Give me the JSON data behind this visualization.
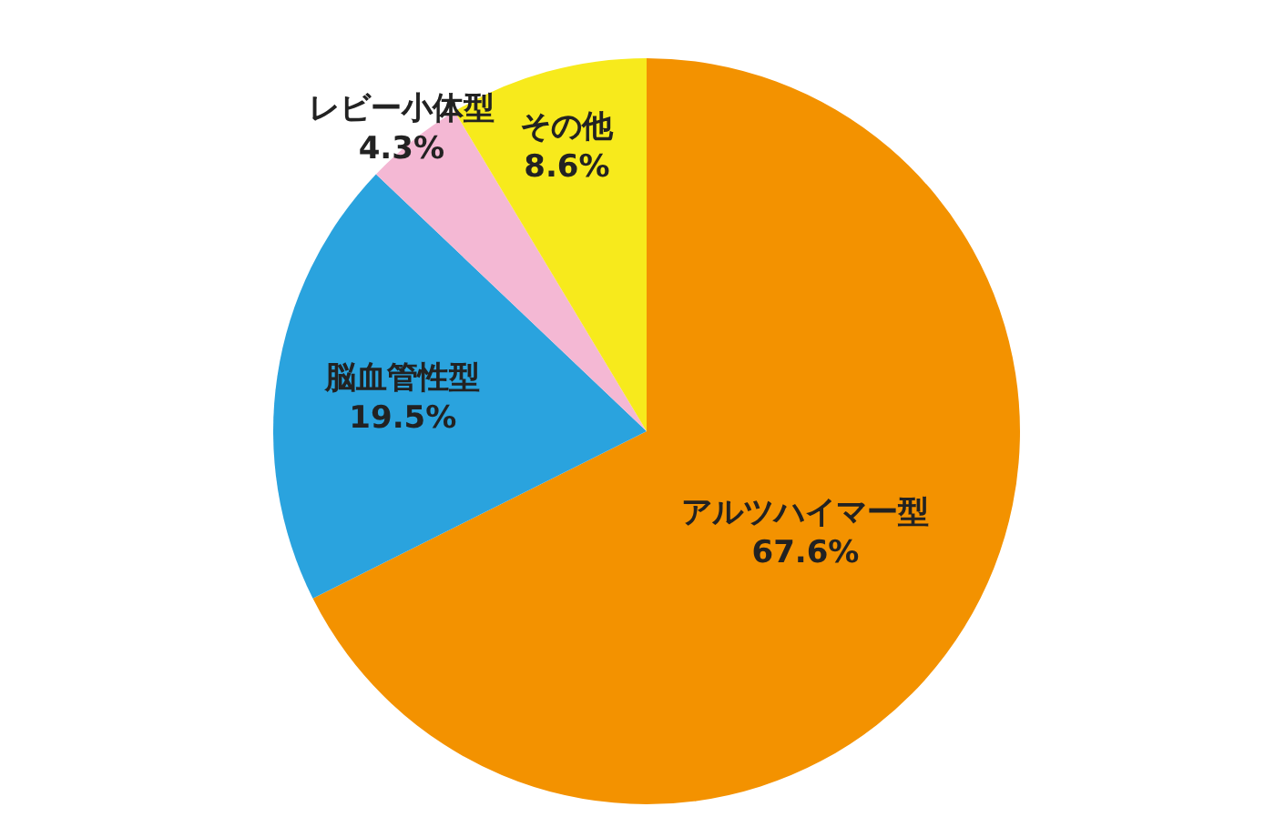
{
  "chart_data": {
    "type": "pie",
    "categories": [
      "アルツハイマー型",
      "脳血管性型",
      "レビー小体型",
      "その他"
    ],
    "values": [
      67.6,
      19.5,
      4.3,
      8.6
    ],
    "colors": [
      "#f39200",
      "#2aa3de",
      "#f4b8d4",
      "#f7ea1c"
    ],
    "value_labels": [
      "67.6%",
      "19.5%",
      "4.3%",
      "8.6%"
    ]
  }
}
